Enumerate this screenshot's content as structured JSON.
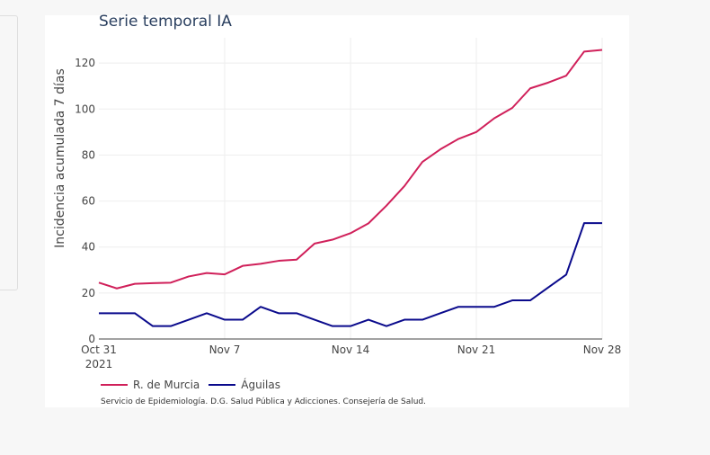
{
  "chart_data": {
    "type": "line",
    "title": "Serie temporal IA",
    "ylabel": "Incidencia acumulada 7 días",
    "xlabel": "",
    "x": [
      "2021-10-31",
      "2021-11-01",
      "2021-11-02",
      "2021-11-03",
      "2021-11-04",
      "2021-11-05",
      "2021-11-06",
      "2021-11-07",
      "2021-11-08",
      "2021-11-09",
      "2021-11-10",
      "2021-11-11",
      "2021-11-12",
      "2021-11-13",
      "2021-11-14",
      "2021-11-15",
      "2021-11-16",
      "2021-11-17",
      "2021-11-18",
      "2021-11-19",
      "2021-11-20",
      "2021-11-21",
      "2021-11-22",
      "2021-11-23",
      "2021-11-24",
      "2021-11-25",
      "2021-11-26",
      "2021-11-27",
      "2021-11-28"
    ],
    "x_ticks": [
      {
        "date": "2021-10-31",
        "label": "Oct 31",
        "sublabel": "2021"
      },
      {
        "date": "2021-11-07",
        "label": "Nov 7",
        "sublabel": ""
      },
      {
        "date": "2021-11-14",
        "label": "Nov 14",
        "sublabel": ""
      },
      {
        "date": "2021-11-21",
        "label": "Nov 21",
        "sublabel": ""
      },
      {
        "date": "2021-11-28",
        "label": "Nov 28",
        "sublabel": ""
      }
    ],
    "y_ticks": [
      0,
      20,
      40,
      60,
      80,
      100,
      120
    ],
    "ylim": [
      0,
      131
    ],
    "xlim": [
      "2021-10-31",
      "2021-11-28"
    ],
    "grid": true,
    "legend_position": "bottom-left",
    "series": [
      {
        "name": "R. de Murcia",
        "color": "#d0205a",
        "values": [
          24.5,
          22.0,
          24.0,
          24.3,
          24.5,
          27.2,
          28.7,
          28.1,
          31.8,
          32.7,
          34.0,
          34.5,
          41.5,
          43.2,
          46.0,
          50.3,
          58.0,
          66.5,
          77.0,
          82.5,
          87.0,
          90.0,
          96.0,
          100.5,
          109.0,
          111.5,
          114.5,
          125.0,
          125.7
        ]
      },
      {
        "name": "Águilas",
        "color": "#0a0a8c",
        "values": [
          11.2,
          11.2,
          11.2,
          5.6,
          5.6,
          8.4,
          11.2,
          8.4,
          8.4,
          14.0,
          11.2,
          11.2,
          8.4,
          5.6,
          5.6,
          8.4,
          5.6,
          8.4,
          8.4,
          11.2,
          14.0,
          14.0,
          14.0,
          16.8,
          16.8,
          22.4,
          28.0,
          50.4,
          50.4
        ]
      }
    ]
  },
  "source_note": "Servicio de Epidemiología. D.G. Salud Pública y Adicciones. Consejería de Salud."
}
